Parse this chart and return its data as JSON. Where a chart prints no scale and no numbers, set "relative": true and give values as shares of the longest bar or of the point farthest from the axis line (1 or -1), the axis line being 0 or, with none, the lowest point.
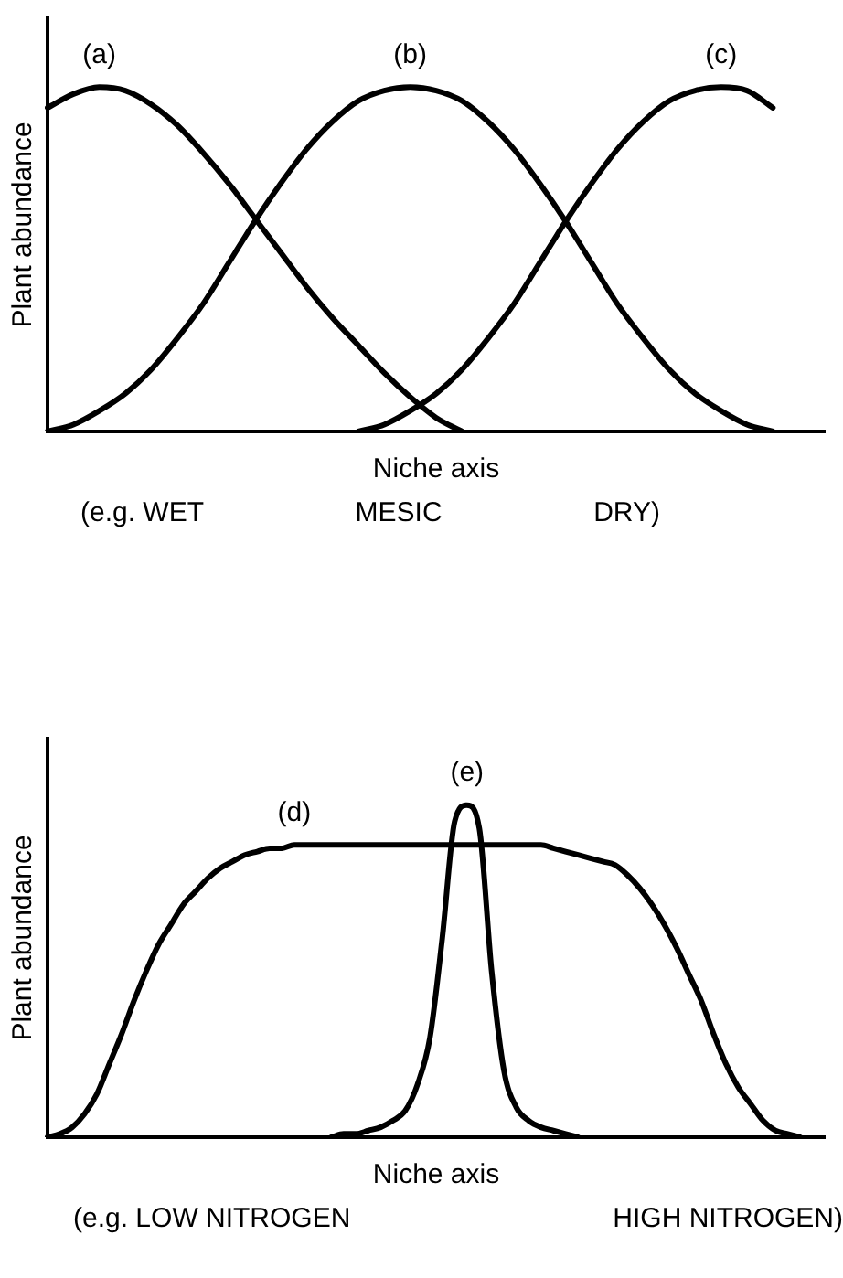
{
  "chart_data": [
    {
      "type": "line",
      "relative": true,
      "tick_labels": false,
      "xlabel": "Niche axis",
      "ylabel": "Plant abundance",
      "categories": [
        null,
        null,
        null,
        null,
        null,
        null,
        null,
        null,
        null,
        null,
        null,
        null,
        null,
        null,
        null,
        null,
        null,
        null,
        null,
        null,
        null,
        null,
        null,
        null,
        null,
        null,
        null,
        null,
        null,
        null,
        null
      ],
      "annotations": [
        "(e.g. WET",
        "MESIC",
        "DRY)"
      ],
      "series": [
        {
          "name": "(a)",
          "color": "#000000",
          "values": [
            0.94,
            0.98,
            1.0,
            0.99,
            0.95,
            0.89,
            0.81,
            0.72,
            0.62,
            0.52,
            0.42,
            0.33,
            0.25,
            0.17,
            0.1,
            0.04,
            0,
            null,
            null,
            null,
            null,
            null,
            null,
            null,
            null,
            null,
            null,
            null,
            null,
            null,
            null
          ]
        },
        {
          "name": "(b)",
          "color": "#000000",
          "values": [
            0,
            0.02,
            0.06,
            0.11,
            0.18,
            0.27,
            0.37,
            0.49,
            0.61,
            0.72,
            0.82,
            0.9,
            0.96,
            0.99,
            1.0,
            0.99,
            0.96,
            0.9,
            0.82,
            0.72,
            0.61,
            0.49,
            0.37,
            0.27,
            0.18,
            0.11,
            0.06,
            0.02,
            0,
            null,
            null
          ]
        },
        {
          "name": "(c)",
          "color": "#000000",
          "values": [
            null,
            null,
            null,
            null,
            null,
            null,
            null,
            null,
            null,
            null,
            null,
            null,
            0,
            0.02,
            0.06,
            0.11,
            0.18,
            0.27,
            0.37,
            0.49,
            0.61,
            0.72,
            0.82,
            0.9,
            0.96,
            0.99,
            1.0,
            0.99,
            0.94,
            null,
            null
          ]
        }
      ]
    },
    {
      "type": "line",
      "relative": true,
      "tick_labels": false,
      "xlabel": "Niche axis",
      "ylabel": "Plant abundance",
      "categories": [
        null,
        null,
        null,
        null,
        null,
        null,
        null,
        null,
        null,
        null,
        null,
        null,
        null,
        null,
        null,
        null,
        null,
        null,
        null,
        null,
        null,
        null,
        null,
        null,
        null,
        null,
        null,
        null,
        null,
        null,
        null,
        null,
        null,
        null,
        null,
        null,
        null,
        null,
        null,
        null,
        null,
        null,
        null,
        null,
        null,
        null,
        null,
        null,
        null,
        null,
        null,
        null,
        null,
        null,
        null,
        null,
        null,
        null,
        null,
        null,
        null,
        null,
        null,
        null
      ],
      "annotations": [
        "(e.g. LOW NITROGEN",
        "HIGH NITROGEN)"
      ],
      "series": [
        {
          "name": "(d)",
          "color": "#000000",
          "values": [
            0,
            0.01,
            0.03,
            0.07,
            0.13,
            0.22,
            0.31,
            0.41,
            0.5,
            0.58,
            0.64,
            0.7,
            0.74,
            0.78,
            0.81,
            0.83,
            0.85,
            0.86,
            0.87,
            0.87,
            0.88,
            0.88,
            0.88,
            0.88,
            0.88,
            0.88,
            0.88,
            0.88,
            0.88,
            0.88,
            0.88,
            0.88,
            0.88,
            0.88,
            0.88,
            0.88,
            0.88,
            0.88,
            0.88,
            0.88,
            0.88,
            0.87,
            0.86,
            0.85,
            0.84,
            0.83,
            0.82,
            0.79,
            0.75,
            0.7,
            0.64,
            0.57,
            0.49,
            0.41,
            0.31,
            0.22,
            0.15,
            0.1,
            0.05,
            0.02,
            0.01,
            0,
            null,
            null
          ]
        },
        {
          "name": "(e)",
          "color": "#000000",
          "values": [
            null,
            null,
            null,
            null,
            null,
            null,
            null,
            null,
            null,
            null,
            null,
            null,
            null,
            null,
            null,
            null,
            null,
            null,
            null,
            null,
            null,
            null,
            null,
            0,
            0.01,
            0.01,
            0.02,
            0.03,
            0.05,
            0.08,
            0.16,
            0.3,
            0.6,
            0.95,
            1.0,
            0.93,
            0.5,
            0.2,
            0.09,
            0.05,
            0.03,
            0.02,
            0.01,
            0,
            null,
            null,
            null,
            null,
            null,
            null,
            null,
            null,
            null,
            null,
            null,
            null,
            null,
            null,
            null,
            null,
            null,
            null,
            null,
            null
          ]
        }
      ]
    }
  ]
}
